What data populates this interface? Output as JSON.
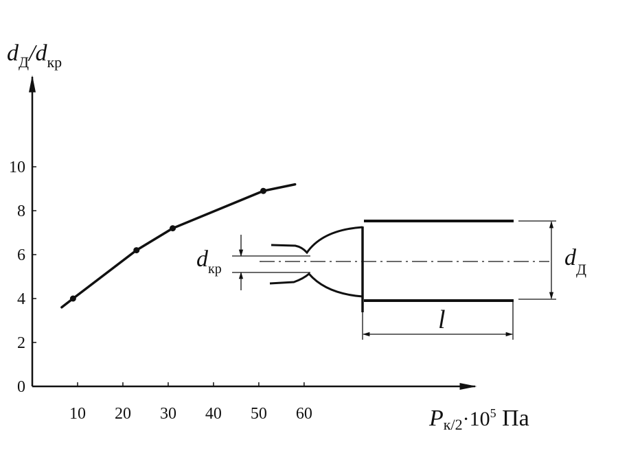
{
  "chart_data": {
    "type": "line",
    "y_label": {
      "main": "d",
      "sub": "Д",
      "main2": "/d",
      "sub2": "кр"
    },
    "x_label": {
      "main": "P",
      "sub": "к/2",
      "mult": "·10",
      "sup": "5",
      "unit": " Па"
    },
    "x": [
      6.5,
      9,
      23,
      31,
      51,
      58
    ],
    "values": [
      3.6,
      4.0,
      6.2,
      7.2,
      8.9,
      9.2
    ],
    "points": {
      "x": [
        9,
        23,
        31,
        51
      ],
      "values": [
        4.0,
        6.2,
        7.2,
        8.9
      ]
    },
    "color": "#111",
    "xlim": [
      0,
      97
    ],
    "ylim": [
      0,
      14
    ],
    "xticks": [
      10,
      20,
      30,
      40,
      50,
      60
    ],
    "yticks": [
      0,
      2,
      4,
      6,
      8,
      10
    ],
    "diagram": {
      "d_kr": {
        "main": "d",
        "sub": "кр"
      },
      "d_d": {
        "main": "d",
        "sub": "Д"
      },
      "l": "l"
    }
  }
}
